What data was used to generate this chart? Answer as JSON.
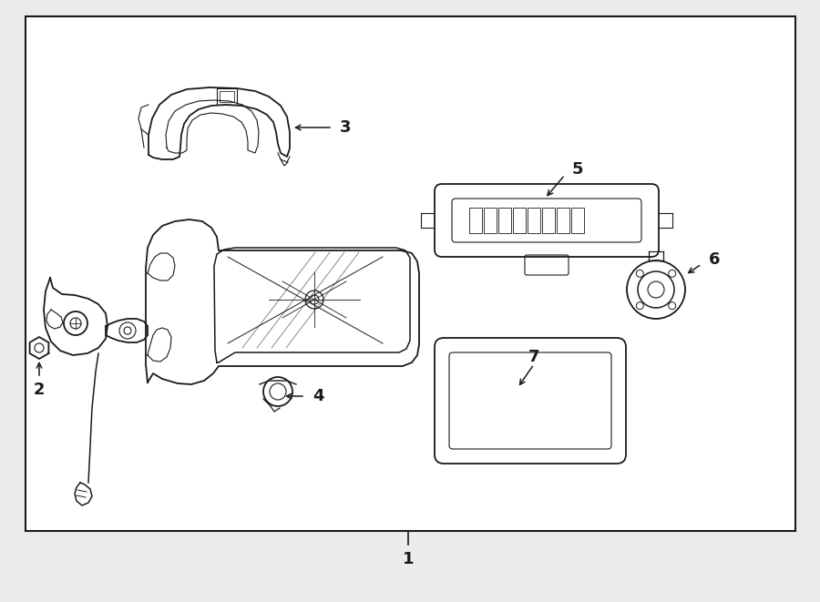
{
  "bg_color": "#ebebeb",
  "box_bg": "#ffffff",
  "line_color": "#1a1a1a",
  "lw_main": 1.3,
  "lw_detail": 0.8,
  "lw_border": 1.5,
  "label_fs": 13
}
